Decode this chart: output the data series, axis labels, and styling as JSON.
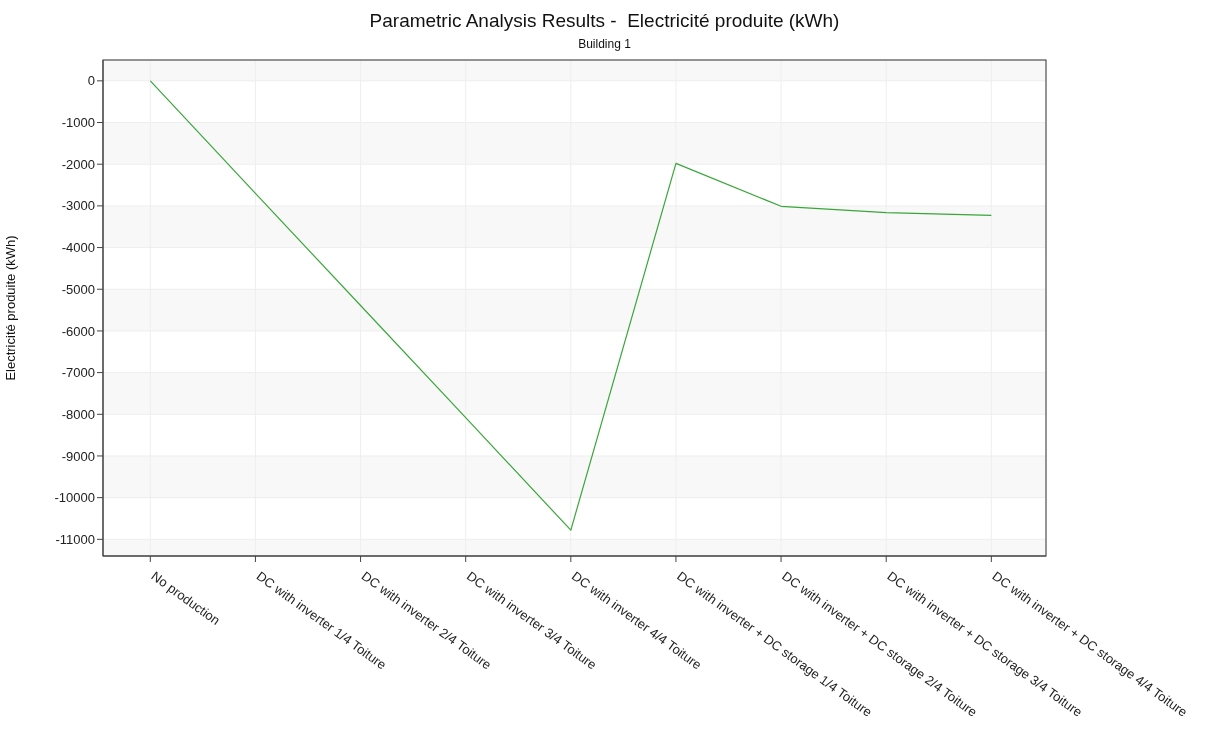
{
  "chart_data": {
    "type": "line",
    "title": "Parametric Analysis Results -  Electricité produite (kWh)",
    "subtitle": "Building 1",
    "ylabel": "Electricité produite (kWh)",
    "categories": [
      "No production",
      "DC with inverter 1/4 Toiture",
      "DC with inverter 2/4 Toiture",
      "DC with inverter 3/4 Toiture",
      "DC with inverter 4/4 Toiture",
      "DC with inverter + DC storage 1/4 Toiture",
      "DC with inverter + DC storage 2/4 Toiture",
      "DC with inverter + DC storage 3/4 Toiture",
      "DC with inverter + DC storage 4/4 Toiture"
    ],
    "series": [
      {
        "color": "#3aa63a",
        "values": [
          0,
          -2700,
          -5390,
          -8080,
          -10780,
          -1980,
          -3010,
          -3160,
          -3230
        ]
      }
    ],
    "ylim": [
      -11400,
      500
    ],
    "yticks": [
      0,
      -1000,
      -2000,
      -3000,
      -4000,
      -5000,
      -6000,
      -7000,
      -8000,
      -9000,
      -10000,
      -11000
    ],
    "grid": true,
    "legend": false,
    "marker": "none",
    "line_style": "solid"
  }
}
